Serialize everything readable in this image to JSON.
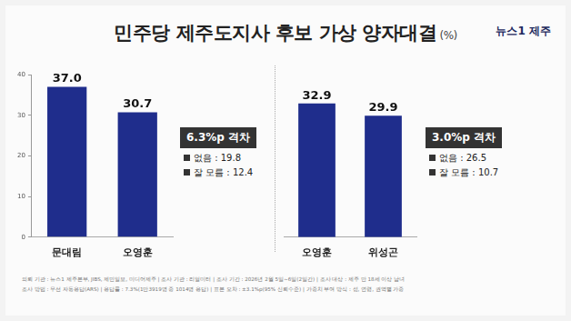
{
  "title": "민주당 제주도지사 후보 가상 양자대결",
  "unit": "(%)",
  "logo": "뉴스1 제주",
  "source": [
    "의뢰 기관 : 뉴스1 제주본부, JIBS, 제민일보, 미디어제주 | 조사 기관 : 리얼미터 | 조사 기간 : 2026년 2월 5일~6일(2일간) | 조사 대상 : 제주 만 18세 이상 남녀",
    "조사 방법 : 무선 자동응답(ARS) | 응답률 : 7.3%(1만3919명 중 1014명 응답) | 표본 오차 : ±3.1%p(95% 신뢰수준) | 가중치 부여 방식 : 성, 연령, 권역별 가중"
  ],
  "chart_data": [
    {
      "type": "bar",
      "categories": [
        "문대림",
        "오영훈"
      ],
      "values": [
        37.0,
        30.7
      ],
      "value_labels": [
        "37.0",
        "30.7"
      ],
      "color": "#1f2d8c",
      "ylim": [
        0,
        40
      ],
      "yticks": [
        0,
        10,
        20,
        30,
        40
      ],
      "grid": false,
      "data_labels": true,
      "annotations": {
        "gap": "6.3%p 격차",
        "notes": [
          "없음 : 19.8",
          "잘 모름 : 12.4"
        ]
      }
    },
    {
      "type": "bar",
      "categories": [
        "오영훈",
        "위성곤"
      ],
      "values": [
        32.9,
        29.9
      ],
      "value_labels": [
        "32.9",
        "29.9"
      ],
      "color": "#1f2d8c",
      "ylim": [
        0,
        40
      ],
      "grid": false,
      "data_labels": true,
      "tick_labels": "x",
      "annotations": {
        "gap": "3.0%p 격차",
        "notes": [
          "없음 : 26.5",
          "잘 모름 : 10.7"
        ]
      }
    }
  ]
}
